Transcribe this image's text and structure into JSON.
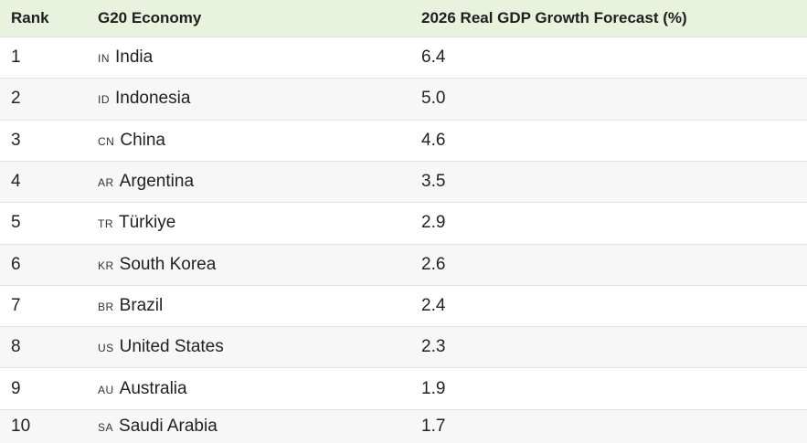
{
  "table": {
    "headers": {
      "rank": "Rank",
      "economy": "G20 Economy",
      "forecast": "2026 Real GDP Growth Forecast (%)"
    },
    "rows": [
      {
        "rank": "1",
        "flag": "IN",
        "economy": "India",
        "forecast": "6.4"
      },
      {
        "rank": "2",
        "flag": "ID",
        "economy": "Indonesia",
        "forecast": "5.0"
      },
      {
        "rank": "3",
        "flag": "CN",
        "economy": "China",
        "forecast": "4.6"
      },
      {
        "rank": "4",
        "flag": "AR",
        "economy": "Argentina",
        "forecast": "3.5"
      },
      {
        "rank": "5",
        "flag": "TR",
        "economy": "Türkiye",
        "forecast": "2.9"
      },
      {
        "rank": "6",
        "flag": "KR",
        "economy": "South Korea",
        "forecast": "2.6"
      },
      {
        "rank": "7",
        "flag": "BR",
        "economy": "Brazil",
        "forecast": "2.4"
      },
      {
        "rank": "8",
        "flag": "US",
        "economy": "United States",
        "forecast": "2.3"
      },
      {
        "rank": "9",
        "flag": "AU",
        "economy": "Australia",
        "forecast": "1.9"
      },
      {
        "rank": "10",
        "flag": "SA",
        "economy": "Saudi Arabia",
        "forecast": "1.7"
      }
    ]
  },
  "colors": {
    "header_bg": "#e8f2dd",
    "row_alt_bg": "#f7f7f7",
    "divider": "#e3e3e3"
  }
}
